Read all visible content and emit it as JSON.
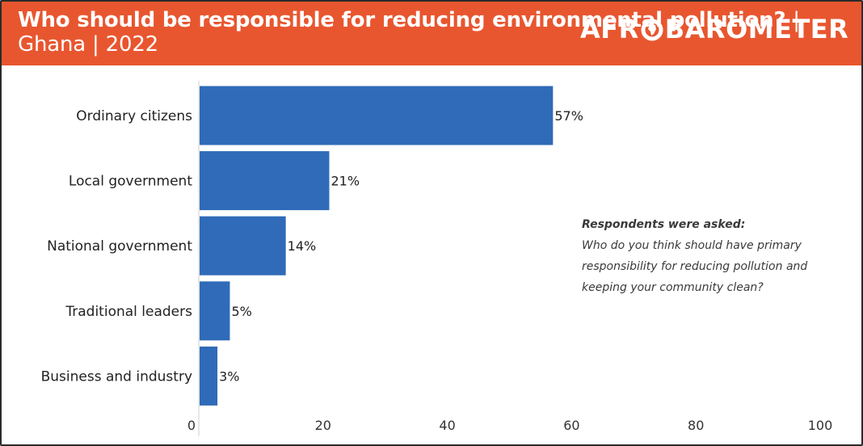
{
  "header": {
    "title_bold": "Who should be responsible for reducing environmental pollution?",
    "title_light": "| Ghana | 2022",
    "logo_before": "AFR",
    "logo_after": "BAROMETER"
  },
  "colors": {
    "header_bg": "#e8562f",
    "bar": "#2f6bb8"
  },
  "note": {
    "heading": "Respondents were asked:",
    "text": "Who do you think should have primary responsibility for reducing pollution and keeping your community clean?"
  },
  "chart_data": {
    "type": "bar",
    "orientation": "horizontal",
    "categories": [
      "Ordinary citizens",
      "Local government",
      "National government",
      "Traditional leaders",
      "Business and industry"
    ],
    "values": [
      57,
      21,
      14,
      5,
      3
    ],
    "value_labels": [
      "57%",
      "21%",
      "14%",
      "5%",
      "3%"
    ],
    "xlim": [
      0,
      100
    ],
    "xticks": [
      0,
      20,
      40,
      60,
      80,
      100
    ],
    "xtick_labels": [
      "0",
      "20",
      "40",
      "60",
      "80",
      "100"
    ],
    "grid": false,
    "legend": "none"
  }
}
